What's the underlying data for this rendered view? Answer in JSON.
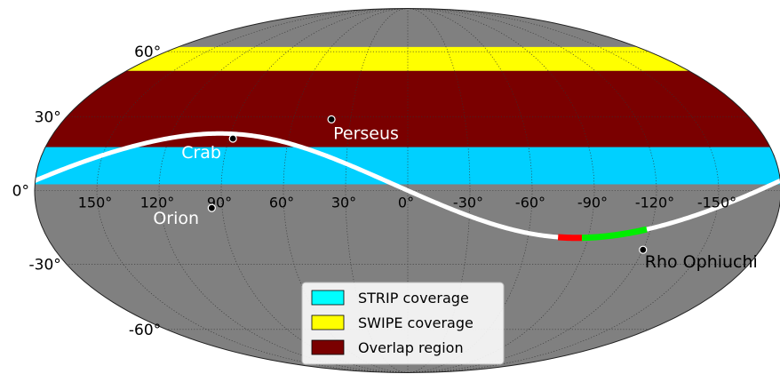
{
  "map": {
    "projection": "mollweide",
    "coordinate_system": "galactic",
    "colors": {
      "background": "#808080",
      "grid": "#333333",
      "strip": "#00d0ff",
      "swipe": "#ffff00",
      "overlap": "#7a0000",
      "plane": "#ffffff",
      "plane_red": "#ff0000",
      "plane_green": "#00ee00"
    },
    "bands": [
      {
        "name": "swipe-band",
        "lat_min": 50.5,
        "lat_max": 62.5,
        "color": "#ffff00"
      },
      {
        "name": "overlap-band",
        "lat_min": 17.5,
        "lat_max": 50.5,
        "color": "#7a0000"
      },
      {
        "name": "strip-band",
        "lat_min": 2.5,
        "lat_max": 17.5,
        "color": "#00d0ff"
      }
    ],
    "lat_lines": [
      -60,
      -30,
      0,
      30,
      60
    ],
    "lon_lines": [
      -150,
      -120,
      -90,
      -60,
      -30,
      0,
      30,
      60,
      90,
      120,
      150
    ],
    "lat_labels": [
      "60°",
      "30°",
      "0°",
      "-30°",
      "-60°"
    ],
    "lon_labels": [
      "150°",
      "120°",
      "90°",
      "60°",
      "30°",
      "0°",
      "-30°",
      "-60°",
      "-90°",
      "-120°",
      "-150°"
    ],
    "sources": [
      {
        "name": "Perseus",
        "lon": 40,
        "lat": 29,
        "label_color": "#ffffff"
      },
      {
        "name": "Crab",
        "lon": 88,
        "lat": 21,
        "label_color": "#ffffff"
      },
      {
        "name": "Orion",
        "lon": 95,
        "lat": -7,
        "label_color": "#ffffff"
      },
      {
        "name": "Rho Ophiuchi",
        "lon": -120,
        "lat": -24,
        "label_color": "#000000"
      }
    ],
    "plane_highlights": [
      {
        "name": "red-segment",
        "lon_from": -75,
        "lon_to": -87,
        "color": "#ff0000"
      },
      {
        "name": "green-segment",
        "lon_from": -87,
        "lon_to": -118,
        "color": "#00ee00"
      }
    ]
  },
  "legend": {
    "items": [
      {
        "label": "STRIP coverage",
        "color": "#00ffff"
      },
      {
        "label": "SWIPE coverage",
        "color": "#ffff00"
      },
      {
        "label": "Overlap region",
        "color": "#7a0000"
      }
    ]
  }
}
